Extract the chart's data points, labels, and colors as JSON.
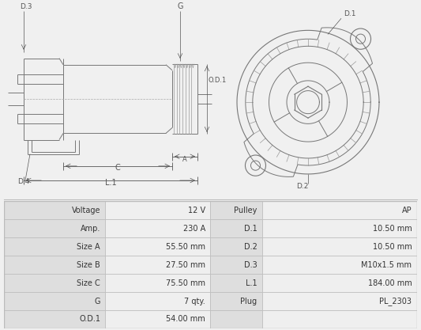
{
  "bg_color": "#f0f0f0",
  "drawing_bg": "#f0f0f0",
  "table_data": [
    [
      "Voltage",
      "12 V",
      "Pulley",
      "AP"
    ],
    [
      "Amp.",
      "230 A",
      "D.1",
      "10.50 mm"
    ],
    [
      "Size A",
      "55.50 mm",
      "D.2",
      "10.50 mm"
    ],
    [
      "Size B",
      "27.50 mm",
      "D.3",
      "M10x1.5 mm"
    ],
    [
      "Size C",
      "75.50 mm",
      "L.1",
      "184.00 mm"
    ],
    [
      "G",
      "7 qty.",
      "Plug",
      "PL_2303"
    ],
    [
      "O.D.1",
      "54.00 mm",
      "",
      ""
    ]
  ],
  "row_bg_label": "#dedede",
  "row_bg_value": "#efefef",
  "border_color": "#bbbbbb",
  "text_color": "#333333",
  "line_color": "#777777",
  "dim_color": "#555555"
}
